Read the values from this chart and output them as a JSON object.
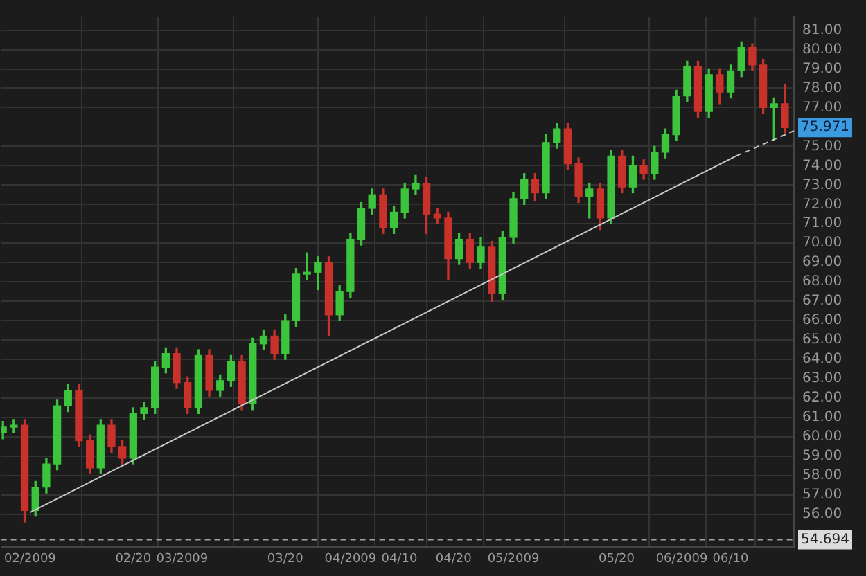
{
  "chart_data": {
    "type": "candlestick",
    "x": [
      "2009-01-27",
      "2009-01-29",
      "2009-01-31",
      "2009-02-02",
      "2009-02-04",
      "2009-02-06",
      "2009-02-08",
      "2009-02-10",
      "2009-02-12",
      "2009-02-14",
      "2009-02-16",
      "2009-02-18",
      "2009-02-20",
      "2009-02-22",
      "2009-02-24",
      "2009-02-26",
      "2009-02-28",
      "2009-03-02",
      "2009-03-04",
      "2009-03-06",
      "2009-03-08",
      "2009-03-10",
      "2009-03-12",
      "2009-03-14",
      "2009-03-16",
      "2009-03-18",
      "2009-03-20",
      "2009-03-22",
      "2009-03-24",
      "2009-03-26",
      "2009-03-28",
      "2009-03-30",
      "2009-04-01",
      "2009-04-03",
      "2009-04-05",
      "2009-04-07",
      "2009-04-09",
      "2009-04-11",
      "2009-04-13",
      "2009-04-15",
      "2009-04-17",
      "2009-04-19",
      "2009-04-21",
      "2009-04-23",
      "2009-04-25",
      "2009-04-27",
      "2009-04-29",
      "2009-05-01",
      "2009-05-03",
      "2009-05-05",
      "2009-05-07",
      "2009-05-09",
      "2009-05-11",
      "2009-05-13",
      "2009-05-15",
      "2009-05-17",
      "2009-05-19",
      "2009-05-21",
      "2009-05-23",
      "2009-05-25",
      "2009-05-27",
      "2009-05-29",
      "2009-05-31",
      "2009-06-02",
      "2009-06-04",
      "2009-06-06",
      "2009-06-08",
      "2009-06-10",
      "2009-06-12",
      "2009-06-14",
      "2009-06-16",
      "2009-06-18",
      "2009-06-20"
    ],
    "ohlc": [
      [
        60.2,
        60.8,
        59.9,
        60.5
      ],
      [
        60.5,
        60.9,
        60.2,
        60.6
      ],
      [
        60.6,
        60.9,
        55.6,
        56.2
      ],
      [
        56.2,
        57.7,
        55.9,
        57.4
      ],
      [
        57.4,
        58.9,
        57.1,
        58.6
      ],
      [
        58.6,
        61.9,
        58.3,
        61.6
      ],
      [
        61.6,
        62.7,
        61.3,
        62.4
      ],
      [
        62.4,
        62.7,
        59.5,
        59.8
      ],
      [
        59.8,
        60.1,
        58.1,
        58.4
      ],
      [
        58.4,
        60.9,
        58.1,
        60.6
      ],
      [
        60.6,
        60.9,
        59.2,
        59.5
      ],
      [
        59.5,
        59.8,
        58.6,
        58.9
      ],
      [
        58.9,
        61.5,
        58.6,
        61.2
      ],
      [
        61.2,
        61.8,
        60.9,
        61.5
      ],
      [
        61.5,
        63.9,
        61.2,
        63.6
      ],
      [
        63.6,
        64.6,
        63.3,
        64.3
      ],
      [
        64.3,
        64.6,
        62.5,
        62.8
      ],
      [
        62.8,
        63.1,
        61.2,
        61.5
      ],
      [
        61.5,
        64.5,
        61.2,
        64.2
      ],
      [
        64.2,
        64.5,
        62.1,
        62.4
      ],
      [
        62.4,
        63.2,
        62.1,
        62.9
      ],
      [
        62.9,
        64.2,
        62.6,
        63.9
      ],
      [
        63.9,
        64.2,
        61.4,
        61.7
      ],
      [
        61.7,
        65.1,
        61.4,
        64.8
      ],
      [
        64.8,
        65.5,
        64.5,
        65.2
      ],
      [
        65.2,
        65.5,
        64.0,
        64.3
      ],
      [
        64.3,
        66.3,
        64.0,
        66.0
      ],
      [
        66.0,
        68.7,
        65.7,
        68.4
      ],
      [
        68.4,
        69.5,
        68.1,
        68.5
      ],
      [
        68.5,
        69.3,
        67.6,
        69.0
      ],
      [
        69.0,
        69.3,
        65.2,
        66.3
      ],
      [
        66.3,
        67.8,
        66.0,
        67.5
      ],
      [
        67.5,
        70.5,
        67.2,
        70.2
      ],
      [
        70.2,
        72.1,
        69.9,
        71.8
      ],
      [
        71.8,
        72.8,
        71.5,
        72.5
      ],
      [
        72.5,
        72.8,
        70.5,
        70.8
      ],
      [
        70.8,
        71.9,
        70.5,
        71.6
      ],
      [
        71.6,
        73.1,
        71.3,
        72.8
      ],
      [
        72.8,
        73.5,
        72.5,
        73.1
      ],
      [
        73.1,
        73.4,
        70.5,
        71.5
      ],
      [
        71.5,
        71.8,
        71.0,
        71.3
      ],
      [
        71.3,
        71.6,
        68.1,
        69.2
      ],
      [
        69.2,
        70.5,
        68.9,
        70.2
      ],
      [
        70.2,
        70.5,
        68.7,
        69.0
      ],
      [
        69.0,
        70.3,
        68.7,
        69.8
      ],
      [
        69.8,
        70.1,
        67.0,
        67.4
      ],
      [
        67.4,
        70.6,
        67.1,
        70.3
      ],
      [
        70.3,
        72.6,
        70.0,
        72.3
      ],
      [
        72.3,
        73.6,
        72.0,
        73.3
      ],
      [
        73.3,
        73.6,
        72.2,
        72.6
      ],
      [
        72.6,
        75.6,
        72.3,
        75.2
      ],
      [
        75.2,
        76.2,
        74.9,
        75.9
      ],
      [
        75.9,
        76.2,
        73.8,
        74.1
      ],
      [
        74.1,
        74.4,
        72.1,
        72.4
      ],
      [
        72.4,
        73.1,
        71.3,
        72.8
      ],
      [
        72.8,
        73.1,
        70.7,
        71.3
      ],
      [
        71.3,
        74.8,
        71.0,
        74.5
      ],
      [
        74.5,
        74.8,
        72.6,
        72.9
      ],
      [
        72.9,
        74.5,
        72.6,
        74.0
      ],
      [
        74.0,
        74.3,
        73.3,
        73.6
      ],
      [
        73.6,
        75.0,
        73.3,
        74.7
      ],
      [
        74.7,
        75.9,
        74.4,
        75.6
      ],
      [
        75.6,
        77.9,
        75.3,
        77.6
      ],
      [
        77.6,
        79.4,
        77.3,
        79.1
      ],
      [
        79.1,
        79.4,
        76.5,
        76.8
      ],
      [
        76.8,
        79.0,
        76.5,
        78.7
      ],
      [
        78.7,
        79.0,
        77.2,
        77.8
      ],
      [
        77.8,
        79.2,
        77.5,
        78.9
      ],
      [
        78.9,
        80.4,
        78.6,
        80.1
      ],
      [
        80.1,
        80.3,
        78.9,
        79.2
      ],
      [
        79.2,
        79.5,
        76.7,
        77.0
      ],
      [
        77.0,
        77.5,
        75.3,
        77.2
      ],
      [
        77.2,
        78.2,
        75.7,
        75.971
      ]
    ],
    "colors": [
      "#3dc43d",
      "#3dc43d",
      "#c8322a",
      "#3dc43d",
      "#3dc43d",
      "#3dc43d",
      "#3dc43d",
      "#c8322a",
      "#c8322a",
      "#3dc43d",
      "#c8322a",
      "#c8322a",
      "#3dc43d",
      "#3dc43d",
      "#3dc43d",
      "#3dc43d",
      "#c8322a",
      "#c8322a",
      "#3dc43d",
      "#c8322a",
      "#3dc43d",
      "#3dc43d",
      "#c8322a",
      "#3dc43d",
      "#3dc43d",
      "#c8322a",
      "#3dc43d",
      "#3dc43d",
      "#3dc43d",
      "#3dc43d",
      "#c8322a",
      "#3dc43d",
      "#3dc43d",
      "#3dc43d",
      "#3dc43d",
      "#c8322a",
      "#3dc43d",
      "#3dc43d",
      "#3dc43d",
      "#c8322a",
      "#c8322a",
      "#c8322a",
      "#3dc43d",
      "#c8322a",
      "#3dc43d",
      "#c8322a",
      "#3dc43d",
      "#3dc43d",
      "#3dc43d",
      "#c8322a",
      "#3dc43d",
      "#3dc43d",
      "#c8322a",
      "#c8322a",
      "#3dc43d",
      "#c8322a",
      "#3dc43d",
      "#c8322a",
      "#3dc43d",
      "#c8322a",
      "#3dc43d",
      "#3dc43d",
      "#3dc43d",
      "#3dc43d",
      "#c8322a",
      "#3dc43d",
      "#c8322a",
      "#3dc43d",
      "#3dc43d",
      "#c8322a",
      "#c8322a",
      "#3dc43d",
      "#c8322a"
    ],
    "series": [
      {
        "type": "line",
        "x": [
          "2009-02-01",
          "2009-06-11"
        ],
        "values": [
          56.1,
          74.5
        ],
        "color": "#c8c8c8",
        "line_style": "solid"
      },
      {
        "type": "line",
        "x": [
          "2009-06-11",
          "2009-06-21T16:00"
        ],
        "values": [
          74.5,
          75.8
        ],
        "color": "#c8c8c8",
        "line_style": "dashed"
      }
    ],
    "xlim": [
      "2009-01-26T16:00",
      "2009-06-21T16:00"
    ],
    "xticks": [
      {
        "value": "2009-02-01",
        "label": "02/2009"
      },
      {
        "value": "2009-02-20",
        "label": "02/20"
      },
      {
        "value": "2009-03-01",
        "label": "03/2009"
      },
      {
        "value": "2009-03-20",
        "label": "03/20"
      },
      {
        "value": "2009-04-01",
        "label": "04/2009"
      },
      {
        "value": "2009-04-10",
        "label": "04/10"
      },
      {
        "value": "2009-04-20",
        "label": "04/20"
      },
      {
        "value": "2009-05-01",
        "label": "05/2009"
      },
      {
        "value": "2009-05-20",
        "label": "05/20"
      },
      {
        "value": "2009-06-01",
        "label": "06/2009"
      },
      {
        "value": "2009-06-10",
        "label": "06/10"
      }
    ],
    "ylim": [
      54.3,
      81.7
    ],
    "yticks": [
      {
        "value": 56,
        "label": "56.00"
      },
      {
        "value": 57,
        "label": "57.00"
      },
      {
        "value": 58,
        "label": "58.00"
      },
      {
        "value": 59,
        "label": "59.00"
      },
      {
        "value": 60,
        "label": "60.00"
      },
      {
        "value": 61,
        "label": "61.00"
      },
      {
        "value": 62,
        "label": "62.00"
      },
      {
        "value": 63,
        "label": "63.00"
      },
      {
        "value": 64,
        "label": "64.00"
      },
      {
        "value": 65,
        "label": "65.00"
      },
      {
        "value": 66,
        "label": "66.00"
      },
      {
        "value": 67,
        "label": "67.00"
      },
      {
        "value": 68,
        "label": "68.00"
      },
      {
        "value": 69,
        "label": "69.00"
      },
      {
        "value": 70,
        "label": "70.00"
      },
      {
        "value": 71,
        "label": "71.00"
      },
      {
        "value": 72,
        "label": "72.00"
      },
      {
        "value": 73,
        "label": "73.00"
      },
      {
        "value": 74,
        "label": "74.00"
      },
      {
        "value": 75,
        "label": "75.00"
      },
      {
        "value": 77,
        "label": "77.00"
      },
      {
        "value": 78,
        "label": "78.00"
      },
      {
        "value": 79,
        "label": "79.00"
      },
      {
        "value": 80,
        "label": "80.00"
      },
      {
        "value": 81,
        "label": "81.00"
      }
    ],
    "grid": true,
    "legend": false,
    "ref_lines": [
      {
        "axis": "y",
        "value": 54.694,
        "label": "54.694",
        "color": "#a0a0a0",
        "line_style": "dashed"
      }
    ],
    "annotations": [
      "75.971"
    ]
  }
}
